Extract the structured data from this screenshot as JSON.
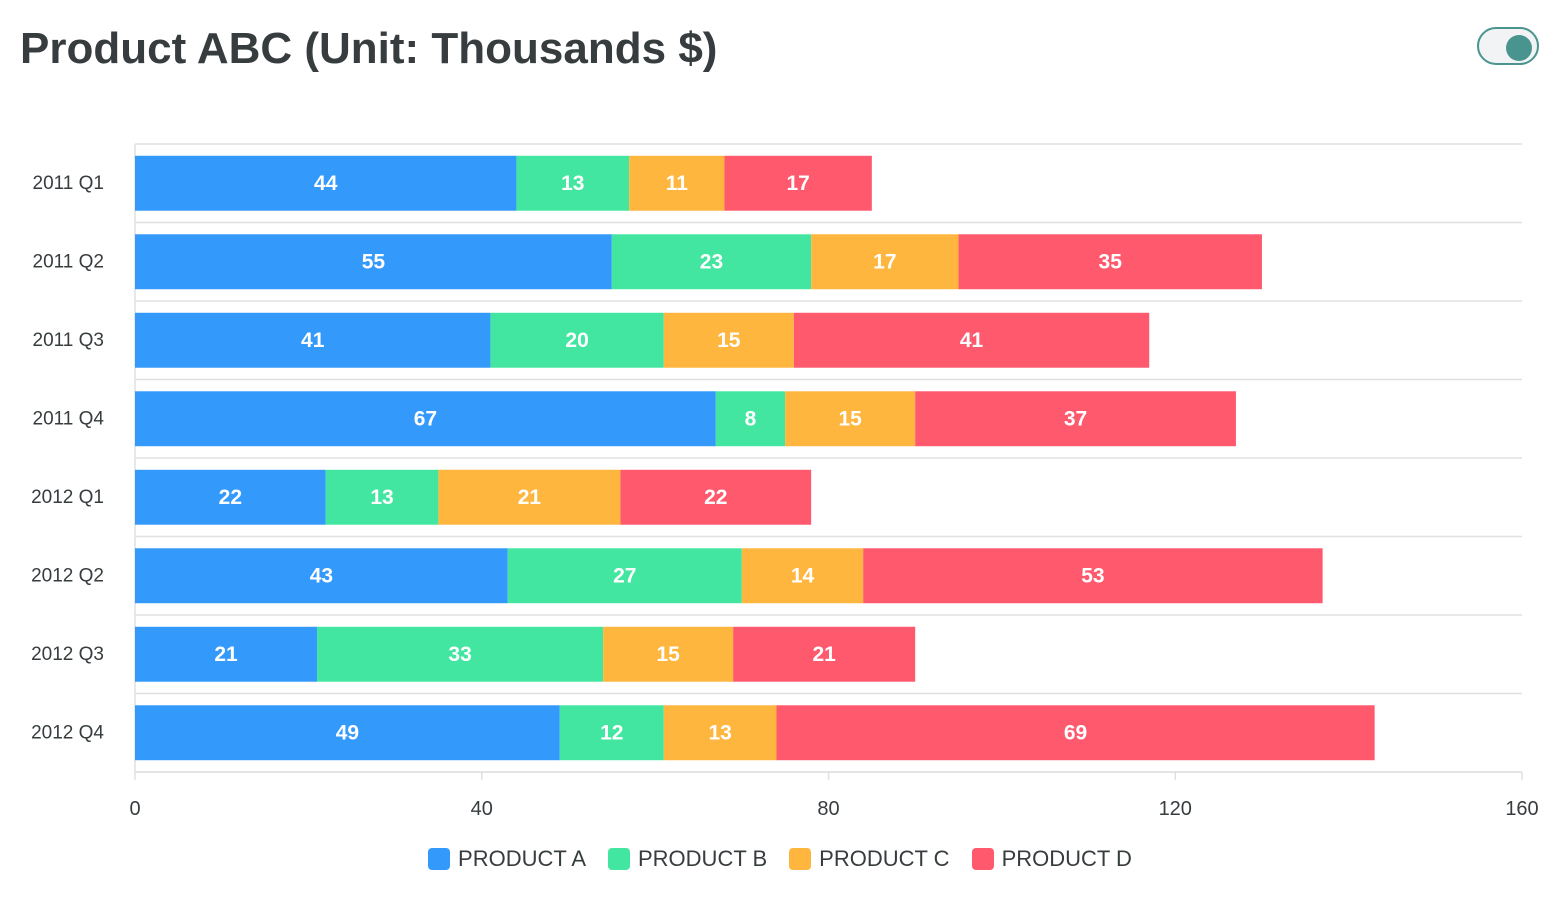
{
  "header": {
    "title": "Product ABC (Unit: Thousands $)"
  },
  "toggle": {
    "state": "on",
    "accent": "#4a9490"
  },
  "chart_data": {
    "type": "bar",
    "orientation": "horizontal",
    "stacked": true,
    "title": "Product ABC (Unit: Thousands $)",
    "xlabel": "",
    "ylabel": "",
    "categories": [
      "2011 Q1",
      "2011 Q2",
      "2011 Q3",
      "2011 Q4",
      "2012 Q1",
      "2012 Q2",
      "2012 Q3",
      "2012 Q4"
    ],
    "series": [
      {
        "name": "PRODUCT A",
        "color": "#3399fa",
        "values": [
          44,
          55,
          41,
          67,
          22,
          43,
          21,
          49
        ]
      },
      {
        "name": "PRODUCT B",
        "color": "#42e6a0",
        "values": [
          13,
          23,
          20,
          8,
          13,
          27,
          33,
          12
        ]
      },
      {
        "name": "PRODUCT C",
        "color": "#ffb63e",
        "values": [
          11,
          17,
          15,
          15,
          21,
          14,
          15,
          13
        ]
      },
      {
        "name": "PRODUCT D",
        "color": "#ff596e",
        "values": [
          17,
          35,
          41,
          37,
          22,
          53,
          21,
          69
        ]
      }
    ],
    "xlim": [
      0,
      160
    ],
    "xticks": [
      0,
      40,
      80,
      120,
      160
    ],
    "grid": "horizontal",
    "legend": "bottom-center",
    "data_labels": true
  }
}
